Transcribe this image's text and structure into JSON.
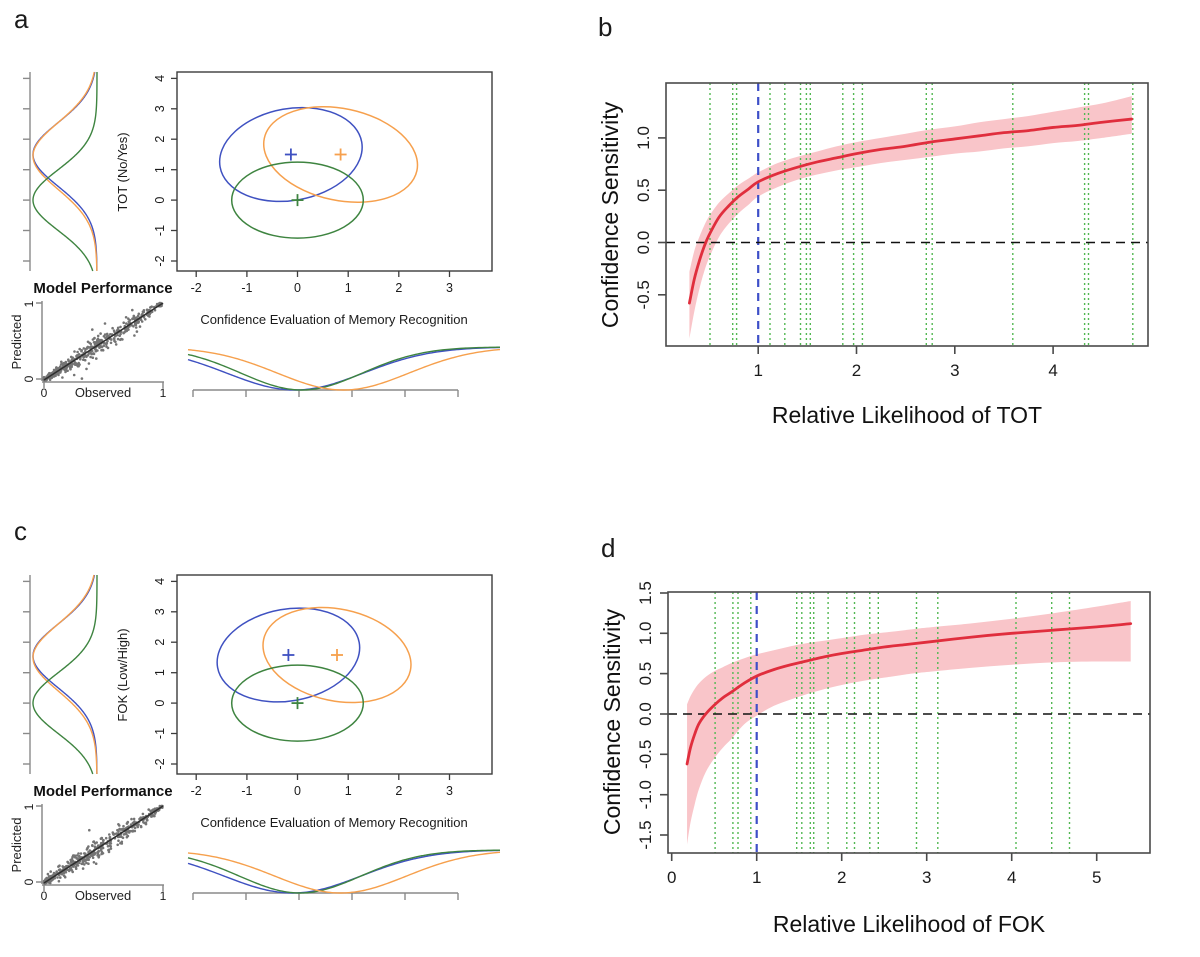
{
  "background": "#ffffff",
  "chart_data": [
    {
      "label": "a",
      "type": "cluster-composite",
      "main": {
        "xlabel": "Confidence Evaluation of Memory Recognition",
        "ylabel": "TOT (No/Yes)",
        "xticks": [
          "-2",
          "-1",
          "0",
          "1",
          "2",
          "3"
        ],
        "xtick_values": [
          -2,
          -1,
          0,
          1,
          2,
          3
        ],
        "yticks": [
          "-2",
          "-1",
          "0",
          "1",
          "2",
          "3",
          "4"
        ],
        "ytick_values": [
          -2,
          -1,
          0,
          1,
          2,
          3,
          4
        ],
        "xlim": [
          -2.38,
          3.84
        ],
        "ylim": [
          -2.33,
          4.21
        ],
        "groups": [
          {
            "name": "blue",
            "color": "#3F51C1",
            "center_x": -0.13,
            "center_y": 1.5,
            "rx": 1.42,
            "ry": 1.51,
            "rot": -10
          },
          {
            "name": "orange",
            "color": "#F6A04D",
            "center_x": 0.85,
            "center_y": 1.5,
            "rx": 1.54,
            "ry": 1.51,
            "rot": 12
          },
          {
            "name": "green",
            "color": "#3E8440",
            "center_x": 0.0,
            "center_y": 0.0,
            "rx": 1.3,
            "ry": 1.25,
            "rot": 0
          }
        ]
      },
      "left_density": [
        {
          "color": "#3F51C1",
          "mean": 1.5,
          "sd": 1.05
        },
        {
          "color": "#F6A04D",
          "mean": 1.45,
          "sd": 1.1
        },
        {
          "color": "#3E8440",
          "mean": 0.0,
          "sd": 1.0
        }
      ],
      "bottom_density": [
        {
          "color": "#3F51C1",
          "mean": -0.05,
          "sd": 1.35
        },
        {
          "color": "#3E8440",
          "mean": 0.08,
          "sd": 1.2
        },
        {
          "color": "#F6A04D",
          "mean": 0.9,
          "sd": 1.3
        }
      ],
      "model_performance": {
        "title": "Model Performance",
        "xlabel": "Observed",
        "ylabel": "Predicted",
        "xticks": [
          "0",
          "1"
        ],
        "yticks": [
          "0",
          "1"
        ],
        "n_points": 460,
        "seed": 7,
        "point_color": "#5C5C5C",
        "line_color": "#2E2E2E"
      }
    },
    {
      "label": "b",
      "type": "line",
      "xlabel": "Relative Likelihood of TOT",
      "ylabel": "Confidence Sensitivity",
      "xticks": [
        "1",
        "2",
        "3",
        "4"
      ],
      "xtick_values": [
        1,
        2,
        3,
        4
      ],
      "yticks": [
        "-0.5",
        "0.0",
        "0.5",
        "1.0"
      ],
      "ytick_values": [
        -0.5,
        0.0,
        0.5,
        1.0
      ],
      "xlim": [
        0.062,
        4.965
      ],
      "ylim": [
        -0.99,
        1.525
      ],
      "colors": {
        "curve": "#E02E3D",
        "band": "#F9C5C9",
        "rug": "#53B853",
        "vline": "#3E4FC8",
        "hline": "#111111"
      },
      "vline_x": 1,
      "hline_y": 0,
      "x": [
        0.3,
        0.35,
        0.4,
        0.45,
        0.5,
        0.6,
        0.7,
        0.8,
        0.9,
        1.0,
        1.2,
        1.4,
        1.6,
        1.8,
        2.0,
        2.25,
        2.5,
        2.75,
        3.0,
        3.25,
        3.5,
        3.75,
        4.0,
        4.25,
        4.5,
        4.8
      ],
      "y": [
        -0.58,
        -0.35,
        -0.18,
        -0.04,
        0.07,
        0.24,
        0.35,
        0.44,
        0.51,
        0.58,
        0.66,
        0.72,
        0.77,
        0.81,
        0.85,
        0.89,
        0.92,
        0.96,
        0.99,
        1.02,
        1.05,
        1.07,
        1.1,
        1.12,
        1.15,
        1.18
      ],
      "upper": [
        -0.28,
        -0.08,
        0.05,
        0.16,
        0.25,
        0.38,
        0.47,
        0.55,
        0.61,
        0.67,
        0.76,
        0.82,
        0.87,
        0.92,
        0.96,
        1.0,
        1.04,
        1.08,
        1.11,
        1.15,
        1.18,
        1.21,
        1.25,
        1.29,
        1.33,
        1.4
      ],
      "lower": [
        -0.92,
        -0.66,
        -0.45,
        -0.28,
        -0.15,
        0.05,
        0.18,
        0.28,
        0.36,
        0.44,
        0.53,
        0.6,
        0.65,
        0.69,
        0.72,
        0.76,
        0.79,
        0.82,
        0.85,
        0.87,
        0.9,
        0.92,
        0.95,
        0.97,
        1.0,
        1.04
      ],
      "rug_x": [
        0.51,
        0.74,
        0.78,
        1.12,
        1.27,
        1.43,
        1.49,
        1.53,
        1.86,
        1.97,
        2.06,
        2.71,
        2.77,
        3.59,
        4.32,
        4.36,
        4.81
      ]
    },
    {
      "label": "c",
      "type": "cluster-composite",
      "main": {
        "xlabel": "Confidence Evaluation of Memory Recognition",
        "ylabel": "FOK (Low/High)",
        "xticks": [
          "-2",
          "-1",
          "0",
          "1",
          "2",
          "3"
        ],
        "xtick_values": [
          -2,
          -1,
          0,
          1,
          2,
          3
        ],
        "yticks": [
          "-2",
          "-1",
          "0",
          "1",
          "2",
          "3",
          "4"
        ],
        "ytick_values": [
          -2,
          -1,
          0,
          1,
          2,
          3,
          4
        ],
        "xlim": [
          -2.38,
          3.84
        ],
        "ylim": [
          -2.33,
          4.21
        ],
        "groups": [
          {
            "name": "blue",
            "color": "#3F51C1",
            "center_x": -0.18,
            "center_y": 1.58,
            "rx": 1.42,
            "ry": 1.51,
            "rot": -10
          },
          {
            "name": "orange",
            "color": "#F6A04D",
            "center_x": 0.78,
            "center_y": 1.58,
            "rx": 1.48,
            "ry": 1.51,
            "rot": 12
          },
          {
            "name": "green",
            "color": "#3E8440",
            "center_x": 0.0,
            "center_y": 0.0,
            "rx": 1.3,
            "ry": 1.25,
            "rot": 0
          }
        ]
      },
      "left_density": [
        {
          "color": "#3F51C1",
          "mean": 1.55,
          "sd": 1.05
        },
        {
          "color": "#F6A04D",
          "mean": 1.5,
          "sd": 1.1
        },
        {
          "color": "#3E8440",
          "mean": 0.0,
          "sd": 1.0
        }
      ],
      "bottom_density": [
        {
          "color": "#3F51C1",
          "mean": -0.1,
          "sd": 1.35
        },
        {
          "color": "#3E8440",
          "mean": 0.05,
          "sd": 1.2
        },
        {
          "color": "#F6A04D",
          "mean": 0.85,
          "sd": 1.3
        }
      ],
      "model_performance": {
        "title": "Model Performance",
        "xlabel": "Observed",
        "ylabel": "Predicted",
        "xticks": [
          "0",
          "1"
        ],
        "yticks": [
          "0",
          "1"
        ],
        "n_points": 460,
        "seed": 13,
        "point_color": "#5C5C5C",
        "line_color": "#2E2E2E"
      }
    },
    {
      "label": "d",
      "type": "line",
      "xlabel": "Relative Likelihood of FOK",
      "ylabel": "Confidence Sensitivity",
      "xticks": [
        "0",
        "1",
        "2",
        "3",
        "4",
        "5"
      ],
      "xtick_values": [
        0,
        1,
        2,
        3,
        4,
        5
      ],
      "yticks": [
        "-1.5",
        "-1.0",
        "-0.5",
        "0.0",
        "0.5",
        "1.0",
        "1.5"
      ],
      "ytick_values": [
        -1.5,
        -1.0,
        -0.5,
        0.0,
        0.5,
        1.0,
        1.5
      ],
      "xlim": [
        -0.044,
        5.627
      ],
      "ylim": [
        -1.723,
        1.512
      ],
      "colors": {
        "curve": "#E02E3D",
        "band": "#F9C5C9",
        "rug": "#53B853",
        "vline": "#3E4FC8",
        "hline": "#111111"
      },
      "vline_x": 1,
      "hline_y": 0,
      "x": [
        0.18,
        0.22,
        0.27,
        0.32,
        0.4,
        0.5,
        0.6,
        0.7,
        0.85,
        1.0,
        1.2,
        1.4,
        1.6,
        1.8,
        2.0,
        2.25,
        2.5,
        2.75,
        3.0,
        3.5,
        4.0,
        4.5,
        5.0,
        5.4
      ],
      "y": [
        -0.62,
        -0.42,
        -0.25,
        -0.12,
        0.0,
        0.11,
        0.2,
        0.27,
        0.38,
        0.47,
        0.55,
        0.61,
        0.66,
        0.71,
        0.75,
        0.79,
        0.83,
        0.86,
        0.89,
        0.95,
        1.0,
        1.04,
        1.08,
        1.12
      ],
      "upper": [
        0.12,
        0.22,
        0.31,
        0.38,
        0.46,
        0.53,
        0.58,
        0.63,
        0.69,
        0.74,
        0.79,
        0.84,
        0.88,
        0.91,
        0.94,
        0.98,
        1.01,
        1.04,
        1.07,
        1.12,
        1.18,
        1.25,
        1.33,
        1.4
      ],
      "lower": [
        -1.62,
        -1.35,
        -1.12,
        -0.93,
        -0.72,
        -0.55,
        -0.42,
        -0.31,
        -0.13,
        -0.02,
        0.1,
        0.18,
        0.25,
        0.31,
        0.36,
        0.41,
        0.45,
        0.49,
        0.52,
        0.57,
        0.61,
        0.64,
        0.65,
        0.65
      ],
      "rug_x": [
        0.51,
        0.72,
        0.78,
        0.93,
        1.47,
        1.53,
        1.63,
        1.67,
        1.84,
        2.06,
        2.15,
        2.33,
        2.43,
        2.88,
        3.13,
        4.05,
        4.47,
        4.68
      ]
    }
  ]
}
